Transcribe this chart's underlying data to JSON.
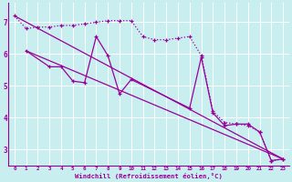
{
  "xlabel": "Windchill (Refroidissement éolien,°C)",
  "background_color": "#c8eef0",
  "line_color": "#990099",
  "xlim": [
    -0.5,
    23.5
  ],
  "ylim": [
    2.5,
    7.6
  ],
  "yticks": [
    3,
    4,
    5,
    6,
    7
  ],
  "xticks": [
    0,
    1,
    2,
    3,
    4,
    5,
    6,
    7,
    8,
    9,
    10,
    11,
    12,
    13,
    14,
    15,
    16,
    17,
    18,
    19,
    20,
    21,
    22,
    23
  ],
  "series1_x": [
    0,
    1,
    2,
    3,
    4,
    5,
    6,
    7,
    8,
    9,
    10,
    11,
    12,
    13,
    14,
    15,
    16,
    17,
    18,
    19,
    20,
    21,
    22,
    23
  ],
  "series1_y": [
    7.2,
    6.8,
    6.85,
    6.85,
    6.9,
    6.9,
    6.95,
    7.0,
    7.05,
    7.05,
    7.05,
    6.55,
    6.45,
    6.45,
    6.5,
    6.55,
    5.95,
    4.2,
    3.85,
    3.8,
    3.75,
    3.55,
    2.65,
    2.7
  ],
  "series2_x": [
    1,
    3,
    4,
    5,
    6,
    7,
    8,
    9,
    10,
    15,
    16,
    17,
    18,
    19,
    20,
    21,
    22,
    23
  ],
  "series2_y": [
    6.1,
    5.6,
    5.6,
    5.15,
    5.1,
    6.55,
    5.95,
    4.75,
    5.2,
    4.3,
    5.9,
    4.15,
    3.75,
    3.8,
    3.8,
    3.55,
    2.65,
    2.7
  ],
  "series3_x": [
    0,
    23
  ],
  "series3_y": [
    7.2,
    2.7
  ],
  "series4_x": [
    1,
    23
  ],
  "series4_y": [
    6.1,
    2.7
  ]
}
